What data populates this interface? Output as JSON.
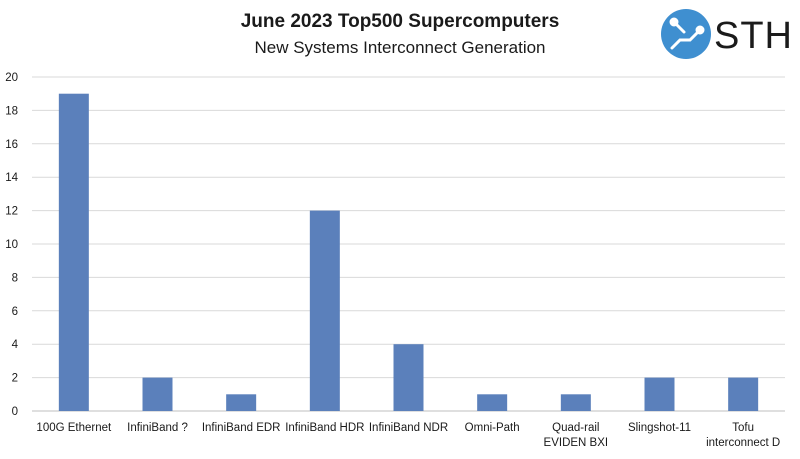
{
  "logo": {
    "text": "STH",
    "accent": "#3f8fd0"
  },
  "chart_data": {
    "type": "bar",
    "title": "June 2023 Top500 Supercomputers",
    "subtitle": "New Systems Interconnect Generation",
    "categories": [
      "100G Ethernet",
      "InfiniBand ?",
      "InfiniBand EDR",
      "InfiniBand HDR",
      "InfiniBand NDR",
      "Omni-Path",
      "Quad-rail EVIDEN BXI",
      "Slingshot-11",
      "Tofu interconnect D"
    ],
    "category_lines": [
      [
        "100G Ethernet"
      ],
      [
        "InfiniBand ?"
      ],
      [
        "InfiniBand EDR"
      ],
      [
        "InfiniBand HDR"
      ],
      [
        "InfiniBand NDR"
      ],
      [
        "Omni-Path"
      ],
      [
        "Quad-rail",
        "EVIDEN BXI"
      ],
      [
        "Slingshot-11"
      ],
      [
        "Tofu",
        "interconnect D"
      ]
    ],
    "values": [
      19,
      2,
      1,
      12,
      4,
      1,
      1,
      2,
      2
    ],
    "ylim": [
      0,
      20
    ],
    "yticks": [
      0,
      2,
      4,
      6,
      8,
      10,
      12,
      14,
      16,
      18,
      20
    ],
    "grid": true,
    "bar_color": "#5b80bb",
    "xlabel": "",
    "ylabel": ""
  }
}
